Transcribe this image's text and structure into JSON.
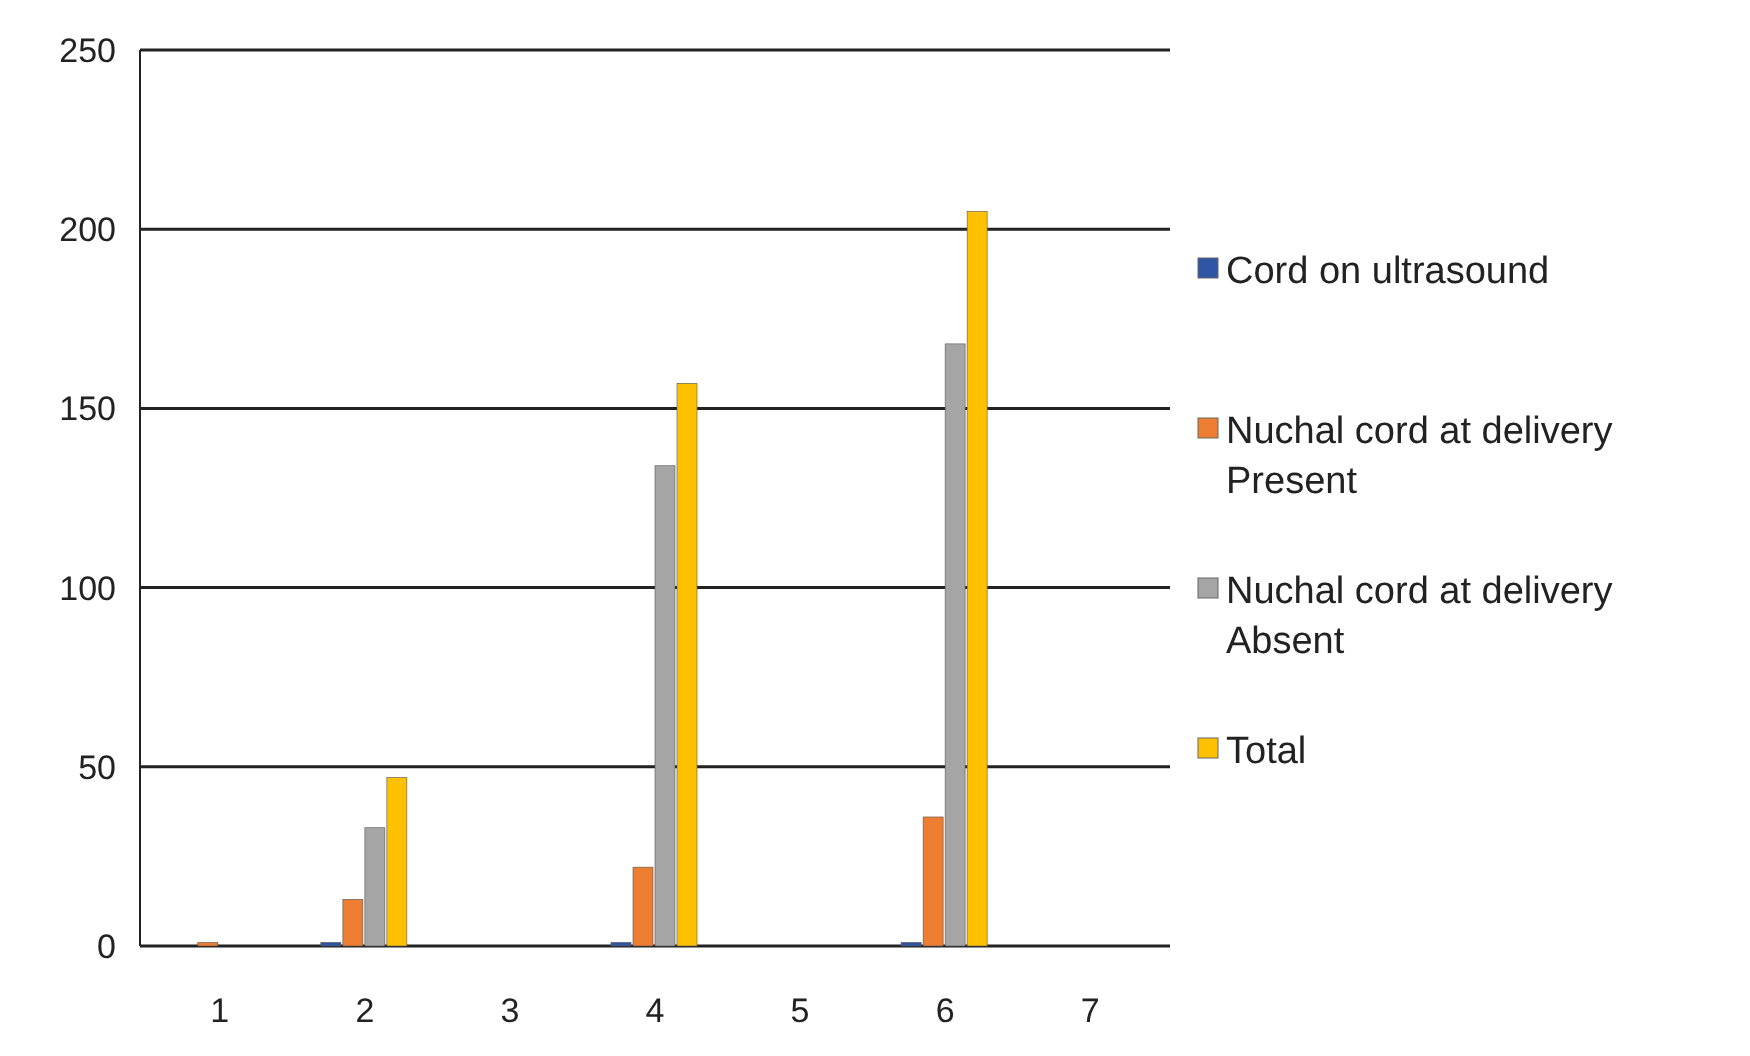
{
  "chart_data": {
    "type": "bar",
    "categories": [
      "1",
      "2",
      "3",
      "4",
      "5",
      "6",
      "7"
    ],
    "series": [
      {
        "name": "Cord on ultrasound",
        "color": "#2f55a4",
        "values": [
          null,
          1,
          null,
          1,
          null,
          1,
          null
        ]
      },
      {
        "name": "Nuchal cord at delivery Present",
        "color": "#ed7d31",
        "values": [
          1,
          13,
          null,
          22,
          null,
          36,
          null
        ]
      },
      {
        "name": "Nuchal cord at delivery Absent",
        "color": "#a5a5a5",
        "values": [
          null,
          33,
          null,
          134,
          null,
          168,
          null
        ]
      },
      {
        "name": "Total",
        "color": "#ffc000",
        "values": [
          null,
          47,
          null,
          157,
          null,
          205,
          null
        ]
      }
    ],
    "ylim": [
      0,
      250
    ],
    "yticks": [
      0,
      50,
      100,
      150,
      200,
      250
    ],
    "grid": "y",
    "legend": "right"
  }
}
